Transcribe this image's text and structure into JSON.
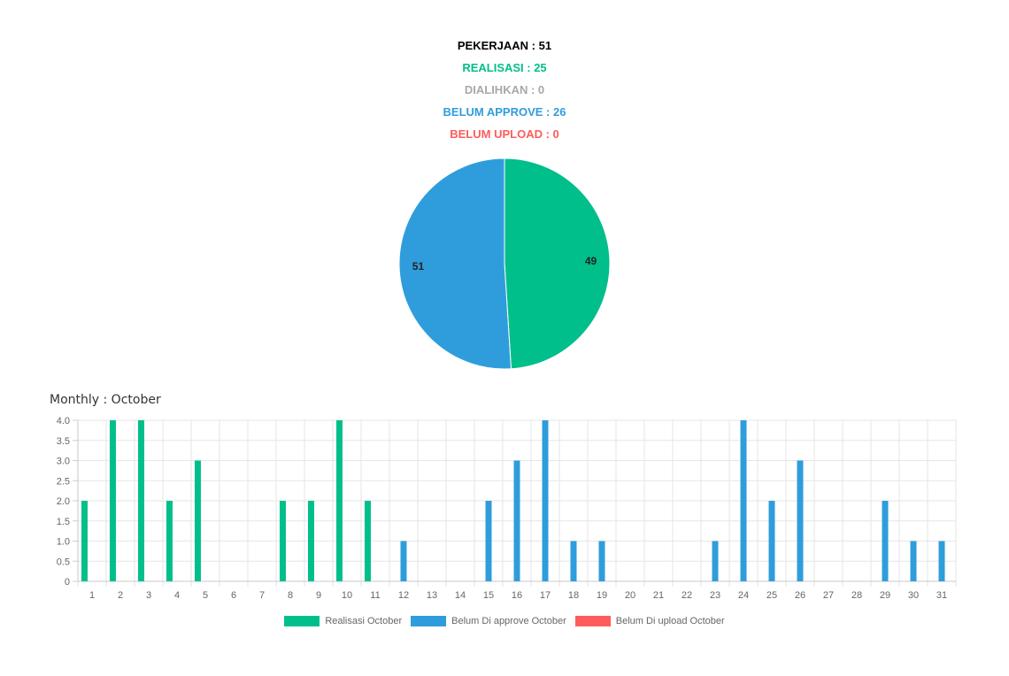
{
  "summary": {
    "pekerjaan": "PEKERJAAN : 51",
    "realisasi": "REALISASI : 25",
    "dialihkan": "DIALIHKAN : 0",
    "belum_approve": "BELUM APPROVE : 26",
    "belum_upload": "BELUM UPLOAD : 0"
  },
  "colors": {
    "black": "#000000",
    "green": "#00bf8a",
    "gray": "#a8a8a8",
    "blue": "#2f9ddb",
    "red": "#ff5b5b"
  },
  "chart_data": [
    {
      "type": "pie",
      "labels": [
        "49",
        "51"
      ],
      "values": [
        49,
        51
      ],
      "colors": [
        "#00bf8a",
        "#2f9ddb"
      ]
    },
    {
      "type": "bar",
      "title": "Monthly : October",
      "categories": [
        "1",
        "2",
        "3",
        "4",
        "5",
        "6",
        "7",
        "8",
        "9",
        "10",
        "11",
        "12",
        "13",
        "14",
        "15",
        "16",
        "17",
        "18",
        "19",
        "20",
        "21",
        "22",
        "23",
        "24",
        "25",
        "26",
        "27",
        "28",
        "29",
        "30",
        "31"
      ],
      "series": [
        {
          "name": "Realisasi October",
          "color": "#00bf8a",
          "values": [
            2,
            4,
            4,
            2,
            3,
            0,
            0,
            2,
            2,
            4,
            2,
            0,
            0,
            0,
            0,
            0,
            0,
            0,
            0,
            0,
            0,
            0,
            0,
            0,
            0,
            0,
            0,
            0,
            0,
            0,
            0
          ]
        },
        {
          "name": "Belum Di approve October",
          "color": "#2f9ddb",
          "values": [
            0,
            0,
            0,
            0,
            0,
            0,
            0,
            0,
            0,
            0,
            0,
            1,
            0,
            0,
            2,
            3,
            4,
            1,
            1,
            0,
            0,
            0,
            1,
            4,
            2,
            3,
            0,
            0,
            2,
            1,
            1
          ]
        },
        {
          "name": "Belum Di upload October",
          "color": "#ff5b5b",
          "values": [
            0,
            0,
            0,
            0,
            0,
            0,
            0,
            0,
            0,
            0,
            0,
            0,
            0,
            0,
            0,
            0,
            0,
            0,
            0,
            0,
            0,
            0,
            0,
            0,
            0,
            0,
            0,
            0,
            0,
            0,
            0
          ]
        }
      ],
      "yticks": [
        "0",
        "0.5",
        "1.0",
        "1.5",
        "2.0",
        "2.5",
        "3.0",
        "3.5",
        "4.0"
      ],
      "ylim": [
        0,
        4
      ],
      "grid": true,
      "legend": "bottom"
    }
  ]
}
